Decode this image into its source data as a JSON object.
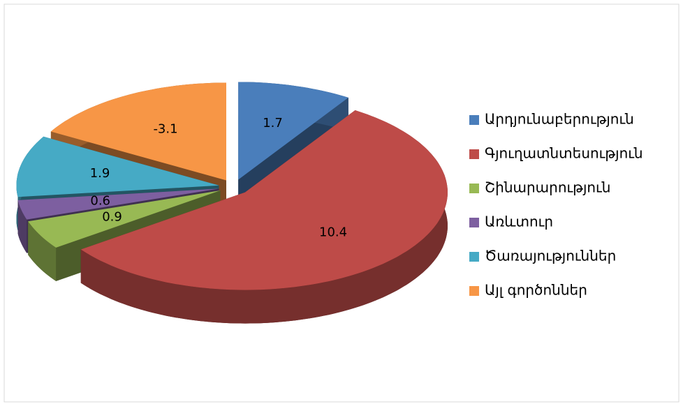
{
  "chart_data": {
    "type": "pie",
    "categories": [
      "Արդյունաբերություն",
      "Գյուղատնտեսություն",
      "Շինարարություն",
      "Առևտուր",
      "Ծառայություններ",
      "Այլ գործոններ"
    ],
    "values": [
      1.7,
      10.4,
      0.9,
      0.6,
      1.9,
      -3.1
    ],
    "colors": [
      "#4a7ebb",
      "#be4b48",
      "#98b954",
      "#7d5fa0",
      "#46aac5",
      "#f79646"
    ],
    "legend": "right"
  }
}
